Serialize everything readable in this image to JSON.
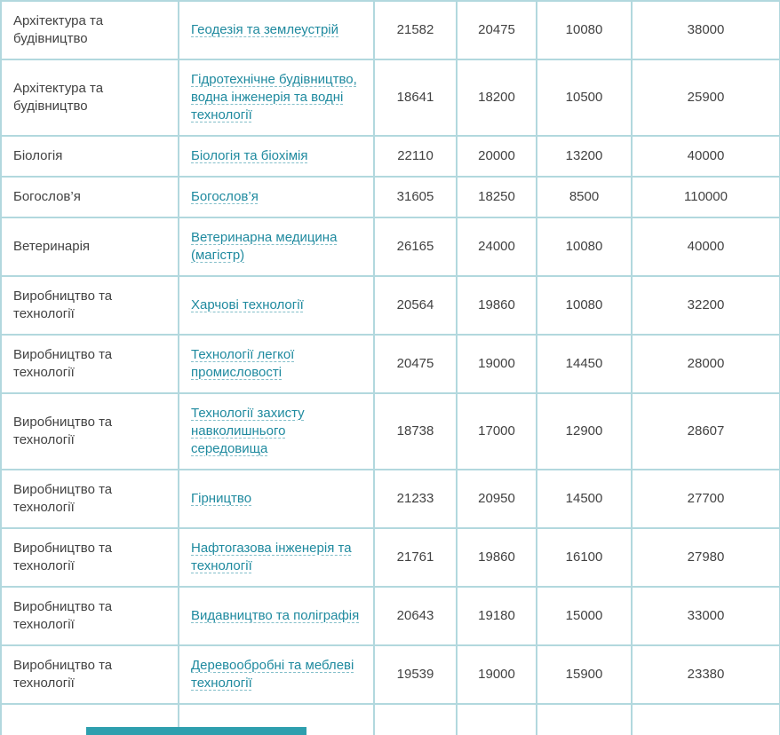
{
  "colors": {
    "border": "#b2d8de",
    "link": "#1f8a9f",
    "text": "#424242",
    "bottom_bar": "#2e9fae"
  },
  "table": {
    "rows": [
      {
        "category": "Архітектура та будівництво",
        "specialty": "Геодезія та землеустрій",
        "values": [
          "21582",
          "20475",
          "10080",
          "38000"
        ]
      },
      {
        "category": "Архітектура та будівництво",
        "specialty": "Гідротехнічне будівництво, водна інженерія та водні технології",
        "values": [
          "18641",
          "18200",
          "10500",
          "25900"
        ]
      },
      {
        "category": "Біологія",
        "specialty": "Біологія та біохімія",
        "values": [
          "22110",
          "20000",
          "13200",
          "40000"
        ]
      },
      {
        "category": "Богослов’я",
        "specialty": "Богослов’я",
        "values": [
          "31605",
          "18250",
          "8500",
          "110000"
        ]
      },
      {
        "category": "Ветеринарія",
        "specialty": "Ветеринарна медицина (магістр)",
        "values": [
          "26165",
          "24000",
          "10080",
          "40000"
        ]
      },
      {
        "category": "Виробництво та технології",
        "specialty": "Харчові технології",
        "values": [
          "20564",
          "19860",
          "10080",
          "32200"
        ]
      },
      {
        "category": "Виробництво та технології",
        "specialty": "Технології легкої промисловості",
        "values": [
          "20475",
          "19000",
          "14450",
          "28000"
        ]
      },
      {
        "category": "Виробництво та технології",
        "specialty": "Технології захисту навколишнього середовища",
        "values": [
          "18738",
          "17000",
          "12900",
          "28607"
        ]
      },
      {
        "category": "Виробництво та технології",
        "specialty": "Гірництво",
        "values": [
          "21233",
          "20950",
          "14500",
          "27700"
        ]
      },
      {
        "category": "Виробництво та технології",
        "specialty": "Нафтогазова інженерія та технології",
        "values": [
          "21761",
          "19860",
          "16100",
          "27980"
        ]
      },
      {
        "category": "Виробництво та технології",
        "specialty": "Видавництво та поліграфія",
        "values": [
          "20643",
          "19180",
          "15000",
          "33000"
        ]
      },
      {
        "category": "Виробництво та технології",
        "specialty": "Деревообробні та меблеві технології",
        "values": [
          "19539",
          "19000",
          "15900",
          "23380"
        ]
      }
    ]
  }
}
